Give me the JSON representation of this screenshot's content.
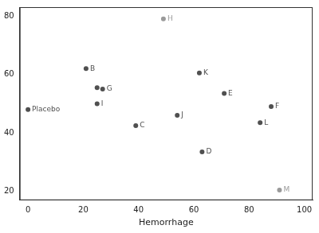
{
  "chart_data": {
    "type": "scatter",
    "x_label": "Hemorrhage",
    "x": [
      0,
      21,
      25,
      27,
      25,
      39,
      49,
      54,
      62,
      63,
      71,
      84,
      88,
      91
    ],
    "values": [
      48,
      62,
      55.5,
      55,
      50,
      42.5,
      79,
      46,
      60.5,
      33.5,
      53.5,
      43.5,
      49,
      20.5
    ],
    "point_labels": [
      "Placebo",
      "B",
      null,
      "G",
      "I",
      "C",
      "H",
      "J",
      "K",
      "D",
      "E",
      "L",
      "F",
      "M"
    ],
    "colors": [
      "#505050",
      "#505050",
      "#505050",
      "#505050",
      "#505050",
      "#505050",
      "#9a9a9a",
      "#505050",
      "#505050",
      "#505050",
      "#505050",
      "#505050",
      "#505050",
      "#9a9a9a"
    ],
    "marker": "circle",
    "xlim": [
      -3,
      103
    ],
    "xticks": [
      0,
      20,
      40,
      60,
      80,
      100
    ],
    "ylim": [
      17,
      83
    ],
    "yticks": [
      20,
      40,
      60,
      80
    ],
    "grid": false
  }
}
